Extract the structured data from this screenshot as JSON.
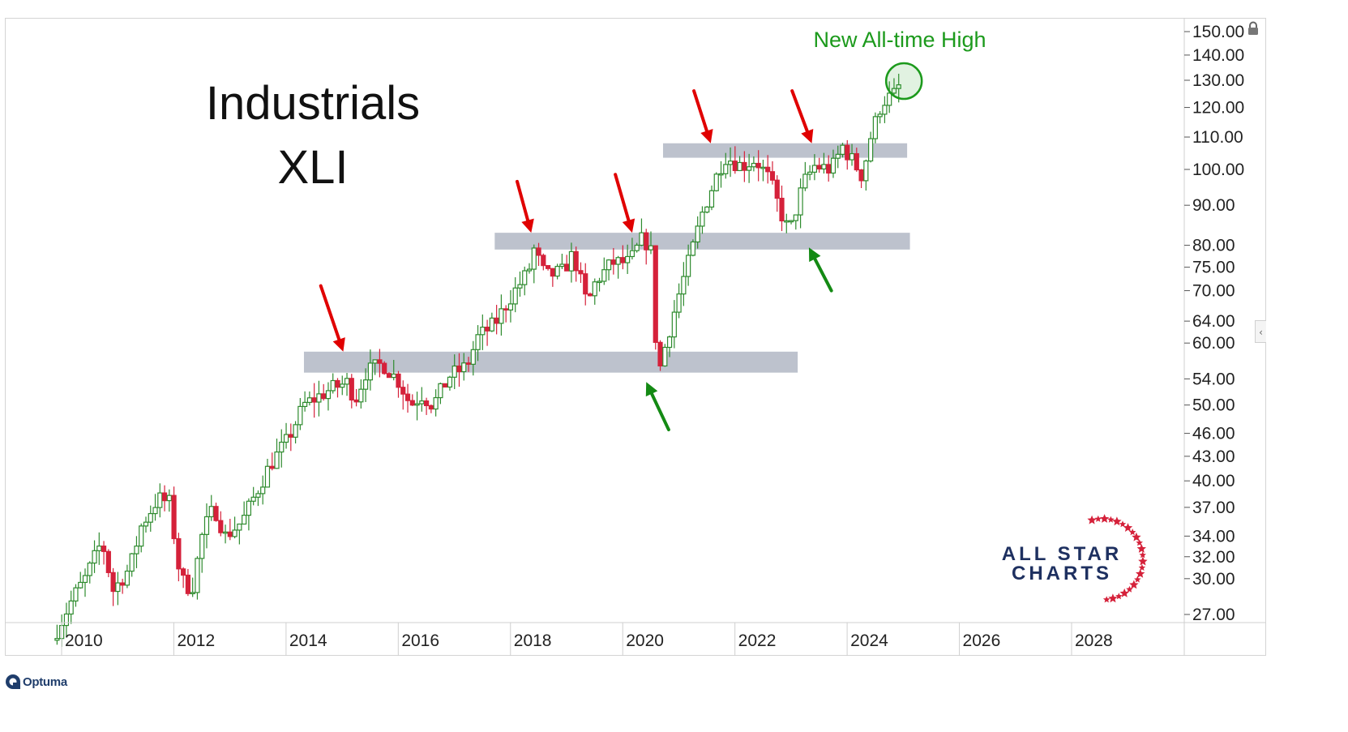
{
  "title": "Industrials",
  "subtitle": "XLI",
  "annotation": "New All-time High",
  "brand": {
    "line1": "ALL STAR",
    "line2": "CHARTS"
  },
  "footer": {
    "vendor": "Optuma"
  },
  "colors": {
    "up": "#2e8b2e",
    "down": "#d5213a",
    "zone": "#aab1bf",
    "red_arrow": "#e00000",
    "green_arrow": "#148a14",
    "annotation": "#1c9a1c",
    "brand_navy": "#1e3060",
    "brand_red": "#d5213a"
  },
  "icons": {
    "lock": "lock-icon",
    "collapse": "chevron-left-icon"
  },
  "chart_data": {
    "type": "candlestick",
    "scale": "log",
    "grid": false,
    "x_ticks": [
      "2010",
      "2012",
      "2014",
      "2016",
      "2018",
      "2020",
      "2022",
      "2024",
      "2026",
      "2028"
    ],
    "y_ticks": [
      "150.00",
      "140.00",
      "130.00",
      "120.00",
      "110.00",
      "100.00",
      "90.00",
      "80.00",
      "75.00",
      "70.00",
      "64.00",
      "60.00",
      "54.00",
      "50.00",
      "46.00",
      "43.00",
      "40.00",
      "37.00",
      "34.00",
      "32.00",
      "30.00",
      "27.00"
    ],
    "xlim": [
      2008.6,
      2029.6
    ],
    "ylim": [
      26.5,
      155
    ],
    "price_path": [
      [
        2009.5,
        25.8
      ],
      [
        2009.8,
        28.5
      ],
      [
        2010.0,
        30.0
      ],
      [
        2010.3,
        33.5
      ],
      [
        2010.5,
        29.0
      ],
      [
        2010.8,
        31.0
      ],
      [
        2011.0,
        35.0
      ],
      [
        2011.3,
        38.0
      ],
      [
        2011.5,
        37.5
      ],
      [
        2011.7,
        30.0
      ],
      [
        2011.9,
        29.0
      ],
      [
        2012.1,
        34.5
      ],
      [
        2012.3,
        37.0
      ],
      [
        2012.5,
        34.0
      ],
      [
        2012.8,
        35.5
      ],
      [
        2013.0,
        38.0
      ],
      [
        2013.3,
        42.0
      ],
      [
        2013.6,
        45.0
      ],
      [
        2013.9,
        50.0
      ],
      [
        2014.1,
        51.0
      ],
      [
        2014.4,
        52.5
      ],
      [
        2014.7,
        53.5
      ],
      [
        2014.8,
        50.5
      ],
      [
        2015.0,
        55.0
      ],
      [
        2015.3,
        56.5
      ],
      [
        2015.6,
        53.5
      ],
      [
        2015.8,
        50.0
      ],
      [
        2016.0,
        51.5
      ],
      [
        2016.2,
        50.0
      ],
      [
        2016.5,
        54.5
      ],
      [
        2016.8,
        56.0
      ],
      [
        2017.0,
        61.0
      ],
      [
        2017.3,
        63.5
      ],
      [
        2017.6,
        69.0
      ],
      [
        2017.9,
        74.0
      ],
      [
        2018.0,
        79.0
      ],
      [
        2018.2,
        73.0
      ],
      [
        2018.5,
        74.0
      ],
      [
        2018.7,
        78.0
      ],
      [
        2018.95,
        67.0
      ],
      [
        2019.1,
        72.0
      ],
      [
        2019.4,
        76.0
      ],
      [
        2019.7,
        76.0
      ],
      [
        2019.95,
        82.0
      ],
      [
        2020.1,
        78.0
      ],
      [
        2020.2,
        54.0
      ],
      [
        2020.35,
        60.0
      ],
      [
        2020.6,
        70.0
      ],
      [
        2020.8,
        78.0
      ],
      [
        2021.0,
        88.0
      ],
      [
        2021.2,
        96.0
      ],
      [
        2021.4,
        104.0
      ],
      [
        2021.7,
        101.0
      ],
      [
        2021.95,
        103.0
      ],
      [
        2022.2,
        97.0
      ],
      [
        2022.4,
        88.0
      ],
      [
        2022.55,
        83.0
      ],
      [
        2022.8,
        96.0
      ],
      [
        2023.0,
        101.0
      ],
      [
        2023.3,
        100.0
      ],
      [
        2023.5,
        107.0
      ],
      [
        2023.7,
        102.0
      ],
      [
        2023.85,
        98.0
      ],
      [
        2024.0,
        110.0
      ],
      [
        2024.2,
        122.0
      ],
      [
        2024.45,
        125.0
      ],
      [
        2024.55,
        130.0
      ]
    ],
    "zones": [
      {
        "x": [
          2013.9,
          2022.7
        ],
        "y": [
          55.0,
          58.5
        ]
      },
      {
        "x": [
          2017.3,
          2024.7
        ],
        "y": [
          79.0,
          83.0
        ]
      },
      {
        "x": [
          2020.3,
          2024.65
        ],
        "y": [
          103.5,
          108.0
        ]
      }
    ],
    "red_arrows": [
      {
        "from": [
          2014.2,
          71.0
        ],
        "to": [
          2014.6,
          58.5
        ]
      },
      {
        "from": [
          2017.7,
          96.5
        ],
        "to": [
          2017.95,
          83.0
        ]
      },
      {
        "from": [
          2019.45,
          98.5
        ],
        "to": [
          2019.75,
          83.0
        ]
      },
      {
        "from": [
          2020.85,
          126.0
        ],
        "to": [
          2021.15,
          108.0
        ]
      },
      {
        "from": [
          2022.6,
          126.0
        ],
        "to": [
          2022.95,
          108.0
        ]
      }
    ],
    "green_arrows": [
      {
        "from": [
          2020.4,
          46.5
        ],
        "to": [
          2020.0,
          53.5
        ]
      },
      {
        "from": [
          2023.3,
          70.0
        ],
        "to": [
          2022.9,
          79.5
        ]
      }
    ],
    "highlight_circle": {
      "x": 2024.55,
      "y": 130.0
    }
  }
}
